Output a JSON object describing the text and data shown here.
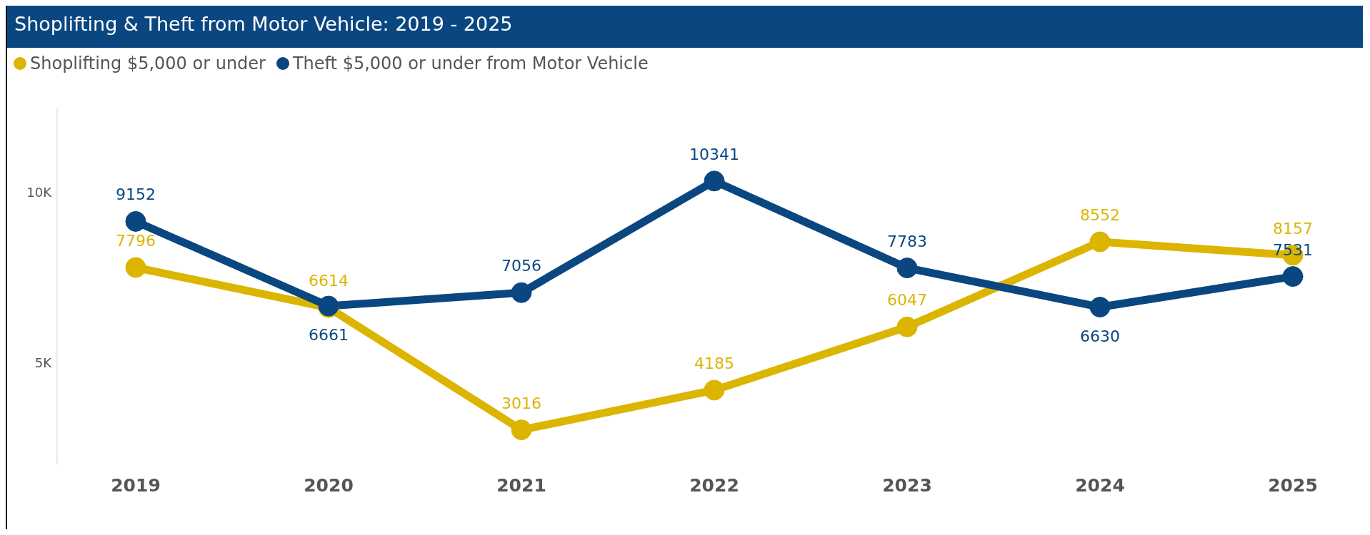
{
  "chart_data": {
    "type": "line",
    "title": "Shoplifting & Theft from Motor Vehicle: 2019 - 2025",
    "categories": [
      "2019",
      "2020",
      "2021",
      "2022",
      "2023",
      "2024",
      "2025"
    ],
    "series": [
      {
        "name": "Shoplifting $5,000 or under",
        "color": "#dbb500",
        "values": [
          7796,
          6614,
          3016,
          4185,
          6047,
          8552,
          8157
        ]
      },
      {
        "name": "Theft $5,000 or under from Motor Vehicle",
        "color": "#0a4780",
        "values": [
          9152,
          6661,
          7056,
          10341,
          7783,
          6630,
          7531
        ]
      }
    ],
    "ylim": [
      2000,
      12500
    ],
    "yticks": [
      {
        "value": 5000,
        "label": "5K"
      },
      {
        "value": 10000,
        "label": "10K"
      }
    ],
    "grid": false,
    "legend": "top left",
    "marker": "circle",
    "line_style": "solid",
    "data_labels": true
  }
}
